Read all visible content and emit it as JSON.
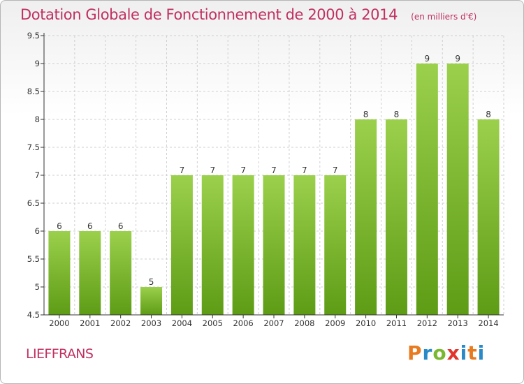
{
  "header": {
    "title": "Dotation Globale de Fonctionnement de 2000 à 2014",
    "unit": "(en milliers d'€)"
  },
  "commune": "LIEFFRANS",
  "logo": {
    "text": "Proxiti",
    "colors": [
      "#e87a20",
      "#2a8ac8",
      "#7ab830",
      "#e2352b",
      "#2a8ac8",
      "#e87a20",
      "#2a8ac8"
    ]
  },
  "chart_data": {
    "type": "bar",
    "categories": [
      "2000",
      "2001",
      "2002",
      "2003",
      "2004",
      "2005",
      "2006",
      "2007",
      "2008",
      "2009",
      "2010",
      "2011",
      "2012",
      "2013",
      "2014"
    ],
    "values": [
      6,
      6,
      6,
      5,
      7,
      7,
      7,
      7,
      7,
      7,
      8,
      8,
      9,
      9,
      8
    ],
    "data_labels": [
      "6",
      "6",
      "6",
      "5",
      "7",
      "7",
      "7",
      "7",
      "7",
      "7",
      "8",
      "8",
      "9",
      "9",
      "8"
    ],
    "ylim": [
      4.5,
      9.5
    ],
    "yticks": [
      4.5,
      5,
      5.5,
      6,
      6.5,
      7,
      7.5,
      8,
      8.5,
      9,
      9.5
    ],
    "ytick_labels": [
      "4.5",
      "5",
      "5.5",
      "6",
      "6.5",
      "7",
      "7.5",
      "8",
      "8.5",
      "9",
      "9.5"
    ],
    "grid": true,
    "bar_color_top": "#9bd04c",
    "bar_color_bottom": "#5e9c16",
    "axis_color": "#333333",
    "grid_color": "#cfcfcf"
  }
}
